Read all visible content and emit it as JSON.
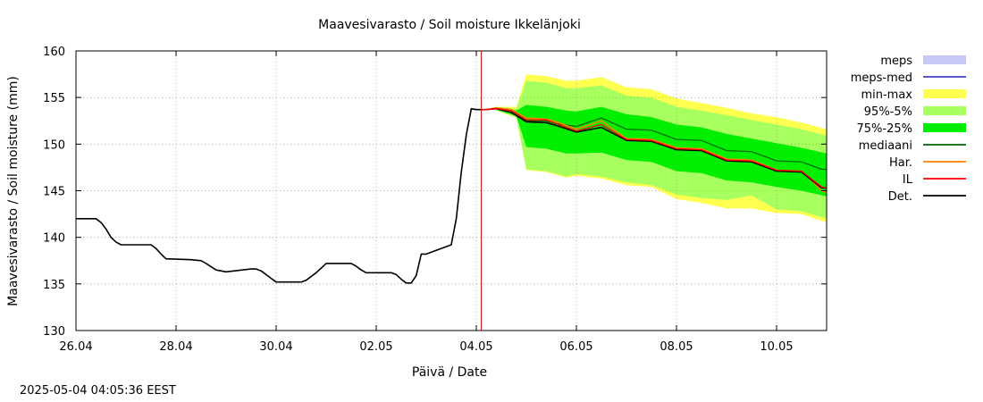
{
  "chart_data": {
    "type": "area",
    "title": "Maavesivarasto / Soil moisture   Ikkelänjoki",
    "xlabel": "Päivä / Date",
    "ylabel": "Maavesivarasto / Soil moisture (mm)",
    "ylim": [
      130,
      160
    ],
    "xlim_days": [
      0,
      15.0
    ],
    "x_unit": "days since 26.04 00:00",
    "x_ticks": [
      {
        "day": 0,
        "label": "26.04"
      },
      {
        "day": 2,
        "label": "28.04"
      },
      {
        "day": 4,
        "label": "30.04"
      },
      {
        "day": 6,
        "label": "02.05"
      },
      {
        "day": 8,
        "label": "04.05"
      },
      {
        "day": 10,
        "label": "06.05"
      },
      {
        "day": 12,
        "label": "08.05"
      },
      {
        "day": 14,
        "label": "10.05"
      }
    ],
    "y_ticks": [
      130,
      135,
      140,
      145,
      150,
      155,
      160
    ],
    "grid": true,
    "forecast_start_day": 8.1,
    "legend": {
      "placement": "right",
      "entries": [
        {
          "key": "meps",
          "label": "meps",
          "style": "fill",
          "color": "#c8c8f8"
        },
        {
          "key": "meps_med",
          "label": "meps-med",
          "style": "line",
          "color": "#4040c0"
        },
        {
          "key": "minmax",
          "label": "min-max",
          "style": "fill",
          "color": "#ffff50"
        },
        {
          "key": "p95_5",
          "label": "95%-5%",
          "style": "fill",
          "color": "#a8ff60"
        },
        {
          "key": "p75_25",
          "label": "75%-25%",
          "style": "fill",
          "color": "#00ee00"
        },
        {
          "key": "mediaani",
          "label": "mediaani",
          "style": "line",
          "color": "#006400"
        },
        {
          "key": "har",
          "label": "Har.",
          "style": "line",
          "color": "#ff8000"
        },
        {
          "key": "il",
          "label": "IL",
          "style": "line",
          "color": "#ff0000"
        },
        {
          "key": "det",
          "label": "Det.",
          "style": "line",
          "color": "#000000"
        }
      ]
    },
    "series": {
      "det": {
        "x": [
          0,
          0.4,
          0.5,
          0.6,
          0.7,
          0.8,
          0.9,
          1.0,
          1.5,
          1.6,
          1.7,
          1.8,
          2.3,
          2.5,
          2.6,
          2.8,
          3.0,
          3.5,
          3.6,
          3.7,
          3.8,
          3.9,
          4.0,
          4.5,
          4.6,
          4.7,
          4.8,
          5.0,
          5.5,
          5.6,
          5.7,
          5.8,
          6.3,
          6.4,
          6.5,
          6.6,
          6.7,
          6.8,
          6.9,
          6.95,
          7.0,
          7.5,
          7.6,
          7.7,
          7.8,
          7.9,
          8.0,
          8.2,
          8.4,
          8.7,
          9.0,
          9.4,
          9.6,
          10.0,
          10.5,
          11.0,
          11.5,
          12.0,
          12.5,
          13.0,
          13.5,
          14.0,
          14.5,
          14.9,
          15.0
        ],
        "y": [
          142,
          142,
          141.6,
          140.9,
          140.0,
          139.5,
          139.2,
          139.2,
          139.2,
          138.8,
          138.2,
          137.7,
          137.6,
          137.5,
          137.2,
          136.5,
          136.3,
          136.6,
          136.6,
          136.4,
          136.0,
          135.6,
          135.2,
          135.2,
          135.4,
          135.8,
          136.2,
          137.2,
          137.2,
          136.9,
          136.5,
          136.2,
          136.2,
          136.0,
          135.5,
          135.1,
          135.1,
          135.9,
          138.2,
          138.2,
          138.2,
          139.2,
          142.0,
          147.0,
          151.0,
          153.8,
          153.7,
          153.7,
          153.8,
          153.4,
          152.4,
          152.3,
          152.0,
          151.3,
          151.8,
          150.4,
          150.3,
          149.4,
          149.3,
          148.2,
          148.1,
          147.1,
          147.0,
          145.3,
          145.3
        ]
      },
      "il": {
        "x": [
          8.1,
          8.2,
          8.4,
          8.7,
          9.0,
          9.4,
          9.6,
          10.0,
          10.5,
          11.0,
          11.5,
          12.0,
          12.5,
          13.0,
          13.5,
          14.0,
          14.5,
          14.9,
          15.0
        ],
        "y": [
          153.7,
          153.7,
          153.8,
          153.6,
          152.6,
          152.6,
          152.2,
          151.4,
          152.1,
          150.5,
          150.4,
          149.5,
          149.4,
          148.3,
          148.2,
          147.2,
          147.1,
          145.4,
          145.3
        ]
      },
      "har": {
        "x": [
          8.1,
          8.2,
          8.4,
          8.7,
          9.0,
          9.4,
          9.6,
          10.0,
          10.5,
          11.0,
          11.5,
          12.0,
          12.5,
          13.0,
          13.5,
          14.0,
          14.5,
          14.9,
          15.0
        ],
        "y": [
          153.7,
          153.7,
          153.9,
          153.7,
          152.8,
          152.7,
          152.4,
          151.6,
          152.5,
          150.6,
          150.5,
          149.6,
          149.5,
          148.4,
          148.3,
          147.2,
          147.1,
          145.0,
          144.8
        ]
      },
      "mediaani": {
        "x": [
          8.1,
          8.2,
          8.4,
          8.7,
          9.0,
          9.4,
          9.6,
          10.0,
          10.5,
          11.0,
          11.5,
          12.0,
          12.5,
          13.0,
          13.5,
          14.0,
          14.5,
          14.9,
          15.0
        ],
        "y": [
          153.7,
          153.7,
          153.9,
          153.6,
          152.5,
          152.5,
          152.2,
          151.9,
          152.8,
          151.6,
          151.5,
          150.5,
          150.4,
          149.3,
          149.2,
          148.2,
          148.1,
          147.3,
          147.3
        ]
      },
      "minmax": {
        "x": [
          8.4,
          8.8,
          9.0,
          9.4,
          9.8,
          10.0,
          10.5,
          11.0,
          11.5,
          12.0,
          12.5,
          13.0,
          13.5,
          14.0,
          14.5,
          15.0
        ],
        "upper": [
          154.0,
          154.0,
          157.5,
          157.3,
          156.8,
          156.8,
          157.2,
          156.1,
          155.9,
          154.9,
          154.4,
          153.9,
          153.3,
          152.9,
          152.3,
          151.6
        ],
        "lower": [
          153.6,
          152.8,
          147.2,
          147.0,
          146.4,
          146.6,
          146.3,
          145.6,
          145.4,
          144.1,
          143.7,
          143.1,
          143.1,
          142.6,
          142.5,
          141.6
        ]
      },
      "p95_5": {
        "x": [
          8.4,
          8.8,
          9.0,
          9.4,
          9.8,
          10.0,
          10.5,
          11.0,
          11.5,
          12.0,
          12.5,
          13.0,
          13.5,
          14.0,
          14.5,
          15.0
        ],
        "upper": [
          154.0,
          153.8,
          156.8,
          156.6,
          156.0,
          156.0,
          156.3,
          155.2,
          155.0,
          154.0,
          153.6,
          153.1,
          152.6,
          152.1,
          151.6,
          150.9
        ],
        "lower": [
          153.6,
          152.9,
          147.3,
          147.1,
          146.5,
          146.8,
          146.5,
          145.9,
          145.6,
          144.6,
          144.2,
          144.0,
          144.5,
          143.0,
          142.8,
          142.0
        ]
      },
      "p75_25": {
        "x": [
          8.4,
          8.8,
          9.0,
          9.4,
          9.8,
          10.0,
          10.5,
          11.0,
          11.5,
          12.0,
          12.5,
          13.0,
          13.5,
          14.0,
          14.5,
          15.0
        ],
        "upper": [
          153.9,
          153.6,
          154.2,
          154.0,
          153.6,
          153.5,
          154.0,
          153.2,
          152.9,
          152.1,
          151.8,
          151.1,
          150.6,
          150.1,
          149.6,
          149.0
        ],
        "lower": [
          153.7,
          153.0,
          149.7,
          149.5,
          149.0,
          149.0,
          149.1,
          148.3,
          148.1,
          147.1,
          146.9,
          146.1,
          145.9,
          145.4,
          145.0,
          144.4
        ]
      }
    }
  },
  "footer": {
    "timestamp": "2025-05-04 04:05:36 EEST"
  }
}
